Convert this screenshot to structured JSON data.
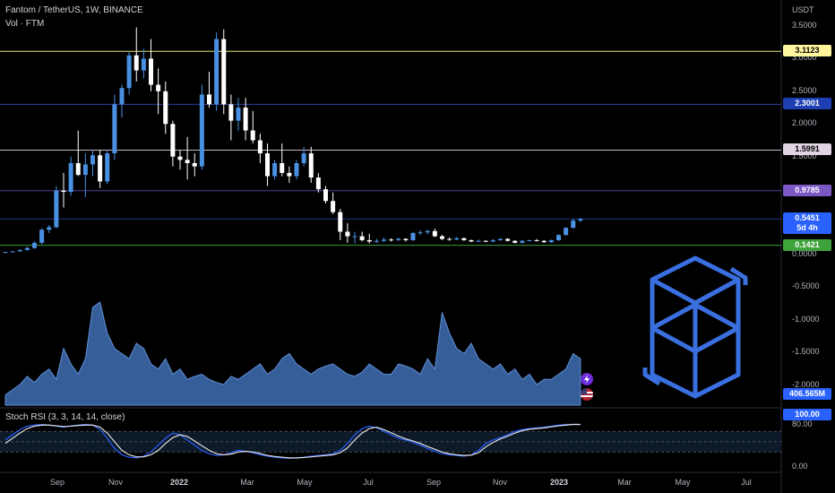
{
  "header": {
    "symbol_line": "Fantom / TetherUS, 1W, BINANCE",
    "vol_line": "Vol · FTM",
    "currency": "USDT"
  },
  "price_axis": {
    "ticks": [
      "3.5000",
      "3.0000",
      "2.5000",
      "2.0000",
      "1.5000",
      "1.0000",
      "0.5000",
      "0.0000",
      "-0.5000",
      "-1.0000",
      "-1.5000",
      "-2.0000"
    ]
  },
  "levels": [
    {
      "value": "3.1123",
      "line_color": "#e6e27a",
      "badge_bg": "#fff59d",
      "badge_fg": "#000000"
    },
    {
      "value": "2.3001",
      "line_color": "#2a3d9e",
      "badge_bg": "#1e3fb4",
      "badge_fg": "#ffffff"
    },
    {
      "value": "1.5991",
      "line_color": "#c7b8c8",
      "badge_bg": "#e0d4e2",
      "badge_fg": "#000000"
    },
    {
      "value": "0.9785",
      "line_color": "#5b3f9e",
      "badge_bg": "#7b58c4",
      "badge_fg": "#ffffff"
    },
    {
      "value": "0.1421",
      "line_color": "#3d9c3a",
      "badge_bg": "#3fa33c",
      "badge_fg": "#ffffff"
    }
  ],
  "last_price": {
    "value": "0.5451",
    "countdown": "5d 4h",
    "color": "#2962ff"
  },
  "volume": {
    "last_label": "406.565M"
  },
  "stoch": {
    "title": "Stoch RSI (3, 3, 14, 14, close)",
    "ticks": [
      "80.00",
      "0.00"
    ],
    "last_label": "100.00"
  },
  "time_axis": [
    {
      "label": "Sep",
      "bold": false
    },
    {
      "label": "Nov",
      "bold": false
    },
    {
      "label": "2022",
      "bold": true
    },
    {
      "label": "Mar",
      "bold": false
    },
    {
      "label": "May",
      "bold": false
    },
    {
      "label": "Jul",
      "bold": false
    },
    {
      "label": "Sep",
      "bold": false
    },
    {
      "label": "Nov",
      "bold": false
    },
    {
      "label": "2023",
      "bold": true
    },
    {
      "label": "Mar",
      "bold": false
    },
    {
      "label": "May",
      "bold": false
    },
    {
      "label": "Jul",
      "bold": false
    }
  ],
  "colors": {
    "up": "#4a90e2",
    "down": "#ffffff",
    "accent": "#2962ff",
    "logo": "#3a6fe0"
  },
  "icons": [
    "lightning-icon",
    "us-flag-icon",
    "fantom-logo-icon"
  ],
  "chart_data": {
    "type": "candlestick",
    "interval": "1W",
    "y_scale": "linear",
    "ylim": [
      -2.2,
      3.7
    ],
    "candles": [
      [
        0.03,
        0.04,
        0.02,
        0.04
      ],
      [
        0.04,
        0.05,
        0.03,
        0.05
      ],
      [
        0.05,
        0.08,
        0.04,
        0.07
      ],
      [
        0.07,
        0.12,
        0.06,
        0.1
      ],
      [
        0.1,
        0.2,
        0.09,
        0.18
      ],
      [
        0.18,
        0.4,
        0.16,
        0.38
      ],
      [
        0.38,
        0.45,
        0.33,
        0.42
      ],
      [
        0.42,
        1.05,
        0.4,
        0.98
      ],
      [
        0.98,
        1.25,
        0.72,
        0.96
      ],
      [
        0.96,
        1.5,
        0.9,
        1.4
      ],
      [
        1.4,
        1.9,
        1.2,
        1.22
      ],
      [
        1.22,
        1.55,
        0.88,
        1.38
      ],
      [
        1.38,
        1.6,
        1.2,
        1.52
      ],
      [
        1.52,
        1.6,
        1.02,
        1.12
      ],
      [
        1.12,
        1.6,
        1.08,
        1.55
      ],
      [
        1.55,
        2.45,
        1.45,
        2.3
      ],
      [
        2.3,
        2.6,
        2.1,
        2.55
      ],
      [
        2.55,
        3.1,
        2.45,
        3.05
      ],
      [
        3.05,
        3.48,
        2.65,
        2.82
      ],
      [
        2.82,
        3.15,
        2.7,
        3.0
      ],
      [
        3.0,
        3.3,
        2.5,
        2.6
      ],
      [
        2.6,
        2.85,
        2.15,
        2.5
      ],
      [
        2.5,
        2.65,
        1.85,
        2.0
      ],
      [
        2.0,
        2.05,
        1.35,
        1.5
      ],
      [
        1.5,
        1.6,
        1.3,
        1.45
      ],
      [
        1.45,
        1.8,
        1.15,
        1.4
      ],
      [
        1.4,
        1.55,
        1.2,
        1.35
      ],
      [
        1.35,
        2.6,
        1.3,
        2.45
      ],
      [
        2.45,
        2.8,
        2.25,
        2.3
      ],
      [
        2.3,
        3.4,
        2.2,
        3.3
      ],
      [
        3.3,
        3.45,
        2.15,
        2.3
      ],
      [
        2.3,
        2.45,
        1.75,
        2.05
      ],
      [
        2.05,
        2.4,
        1.9,
        2.25
      ],
      [
        2.25,
        2.4,
        1.75,
        1.9
      ],
      [
        1.9,
        2.2,
        1.7,
        1.75
      ],
      [
        1.75,
        1.85,
        1.4,
        1.55
      ],
      [
        1.55,
        1.7,
        1.05,
        1.2
      ],
      [
        1.2,
        1.45,
        1.15,
        1.4
      ],
      [
        1.4,
        1.7,
        1.2,
        1.25
      ],
      [
        1.25,
        1.35,
        1.1,
        1.2
      ],
      [
        1.2,
        1.45,
        1.15,
        1.4
      ],
      [
        1.4,
        1.65,
        1.35,
        1.55
      ],
      [
        1.55,
        1.65,
        1.1,
        1.18
      ],
      [
        1.18,
        1.25,
        0.95,
        1.0
      ],
      [
        1.0,
        1.05,
        0.78,
        0.82
      ],
      [
        0.82,
        0.95,
        0.62,
        0.65
      ],
      [
        0.65,
        0.7,
        0.22,
        0.35
      ],
      [
        0.35,
        0.48,
        0.18,
        0.28
      ],
      [
        0.28,
        0.35,
        0.17,
        0.28
      ],
      [
        0.28,
        0.35,
        0.2,
        0.22
      ],
      [
        0.22,
        0.32,
        0.17,
        0.2
      ],
      [
        0.2,
        0.24,
        0.18,
        0.21
      ],
      [
        0.21,
        0.26,
        0.19,
        0.23
      ],
      [
        0.23,
        0.25,
        0.2,
        0.22
      ],
      [
        0.22,
        0.26,
        0.21,
        0.24
      ],
      [
        0.24,
        0.25,
        0.2,
        0.22
      ],
      [
        0.22,
        0.35,
        0.21,
        0.33
      ],
      [
        0.33,
        0.37,
        0.3,
        0.34
      ],
      [
        0.34,
        0.38,
        0.31,
        0.36
      ],
      [
        0.36,
        0.4,
        0.27,
        0.28
      ],
      [
        0.28,
        0.3,
        0.22,
        0.24
      ],
      [
        0.24,
        0.26,
        0.21,
        0.23
      ],
      [
        0.23,
        0.27,
        0.22,
        0.25
      ],
      [
        0.25,
        0.26,
        0.21,
        0.22
      ],
      [
        0.22,
        0.23,
        0.19,
        0.2
      ],
      [
        0.2,
        0.23,
        0.19,
        0.21
      ],
      [
        0.21,
        0.22,
        0.19,
        0.2
      ],
      [
        0.2,
        0.24,
        0.19,
        0.22
      ],
      [
        0.22,
        0.25,
        0.21,
        0.24
      ],
      [
        0.24,
        0.25,
        0.2,
        0.21
      ],
      [
        0.21,
        0.22,
        0.17,
        0.18
      ],
      [
        0.18,
        0.22,
        0.17,
        0.21
      ],
      [
        0.21,
        0.23,
        0.2,
        0.22
      ],
      [
        0.22,
        0.24,
        0.2,
        0.21
      ],
      [
        0.21,
        0.22,
        0.18,
        0.19
      ],
      [
        0.19,
        0.23,
        0.18,
        0.22
      ],
      [
        0.22,
        0.31,
        0.21,
        0.3
      ],
      [
        0.3,
        0.42,
        0.29,
        0.41
      ],
      [
        0.41,
        0.55,
        0.4,
        0.52
      ],
      [
        0.52,
        0.56,
        0.5,
        0.545
      ]
    ],
    "volume_relative": [
      0.1,
      0.15,
      0.2,
      0.28,
      0.22,
      0.3,
      0.35,
      0.25,
      0.55,
      0.4,
      0.3,
      0.45,
      0.95,
      1.0,
      0.7,
      0.55,
      0.5,
      0.45,
      0.6,
      0.55,
      0.4,
      0.35,
      0.45,
      0.3,
      0.35,
      0.25,
      0.28,
      0.3,
      0.25,
      0.22,
      0.2,
      0.28,
      0.25,
      0.3,
      0.35,
      0.4,
      0.3,
      0.35,
      0.45,
      0.5,
      0.4,
      0.35,
      0.3,
      0.35,
      0.38,
      0.4,
      0.35,
      0.3,
      0.28,
      0.32,
      0.4,
      0.35,
      0.3,
      0.3,
      0.4,
      0.38,
      0.35,
      0.3,
      0.45,
      0.35,
      0.9,
      0.7,
      0.55,
      0.5,
      0.6,
      0.45,
      0.4,
      0.35,
      0.4,
      0.3,
      0.35,
      0.25,
      0.3,
      0.2,
      0.25,
      0.25,
      0.3,
      0.35,
      0.5,
      0.45
    ],
    "stoch_k": [
      55,
      70,
      85,
      95,
      98,
      100,
      98,
      95,
      92,
      96,
      98,
      100,
      98,
      85,
      60,
      30,
      12,
      5,
      3,
      8,
      20,
      40,
      60,
      75,
      70,
      55,
      40,
      25,
      15,
      10,
      12,
      18,
      25,
      22,
      18,
      12,
      8,
      5,
      3,
      2,
      3,
      5,
      8,
      10,
      12,
      15,
      25,
      45,
      70,
      88,
      95,
      90,
      80,
      70,
      60,
      55,
      48,
      40,
      30,
      22,
      15,
      12,
      10,
      8,
      12,
      25,
      45,
      55,
      62,
      70,
      80,
      85,
      88,
      90,
      92,
      95,
      98,
      100,
      100,
      100
    ],
    "stoch_d": [
      45,
      60,
      75,
      88,
      95,
      98,
      98,
      96,
      94,
      95,
      97,
      98,
      98,
      92,
      75,
      50,
      25,
      12,
      6,
      6,
      12,
      25,
      45,
      62,
      70,
      65,
      52,
      38,
      25,
      15,
      12,
      14,
      20,
      22,
      20,
      16,
      10,
      7,
      5,
      3,
      3,
      4,
      6,
      8,
      10,
      12,
      18,
      32,
      55,
      75,
      88,
      92,
      85,
      76,
      66,
      58,
      52,
      45,
      36,
      28,
      20,
      15,
      12,
      10,
      11,
      18,
      35,
      48,
      58,
      66,
      75,
      82,
      86,
      88,
      90,
      93,
      96,
      98,
      100,
      100
    ]
  }
}
